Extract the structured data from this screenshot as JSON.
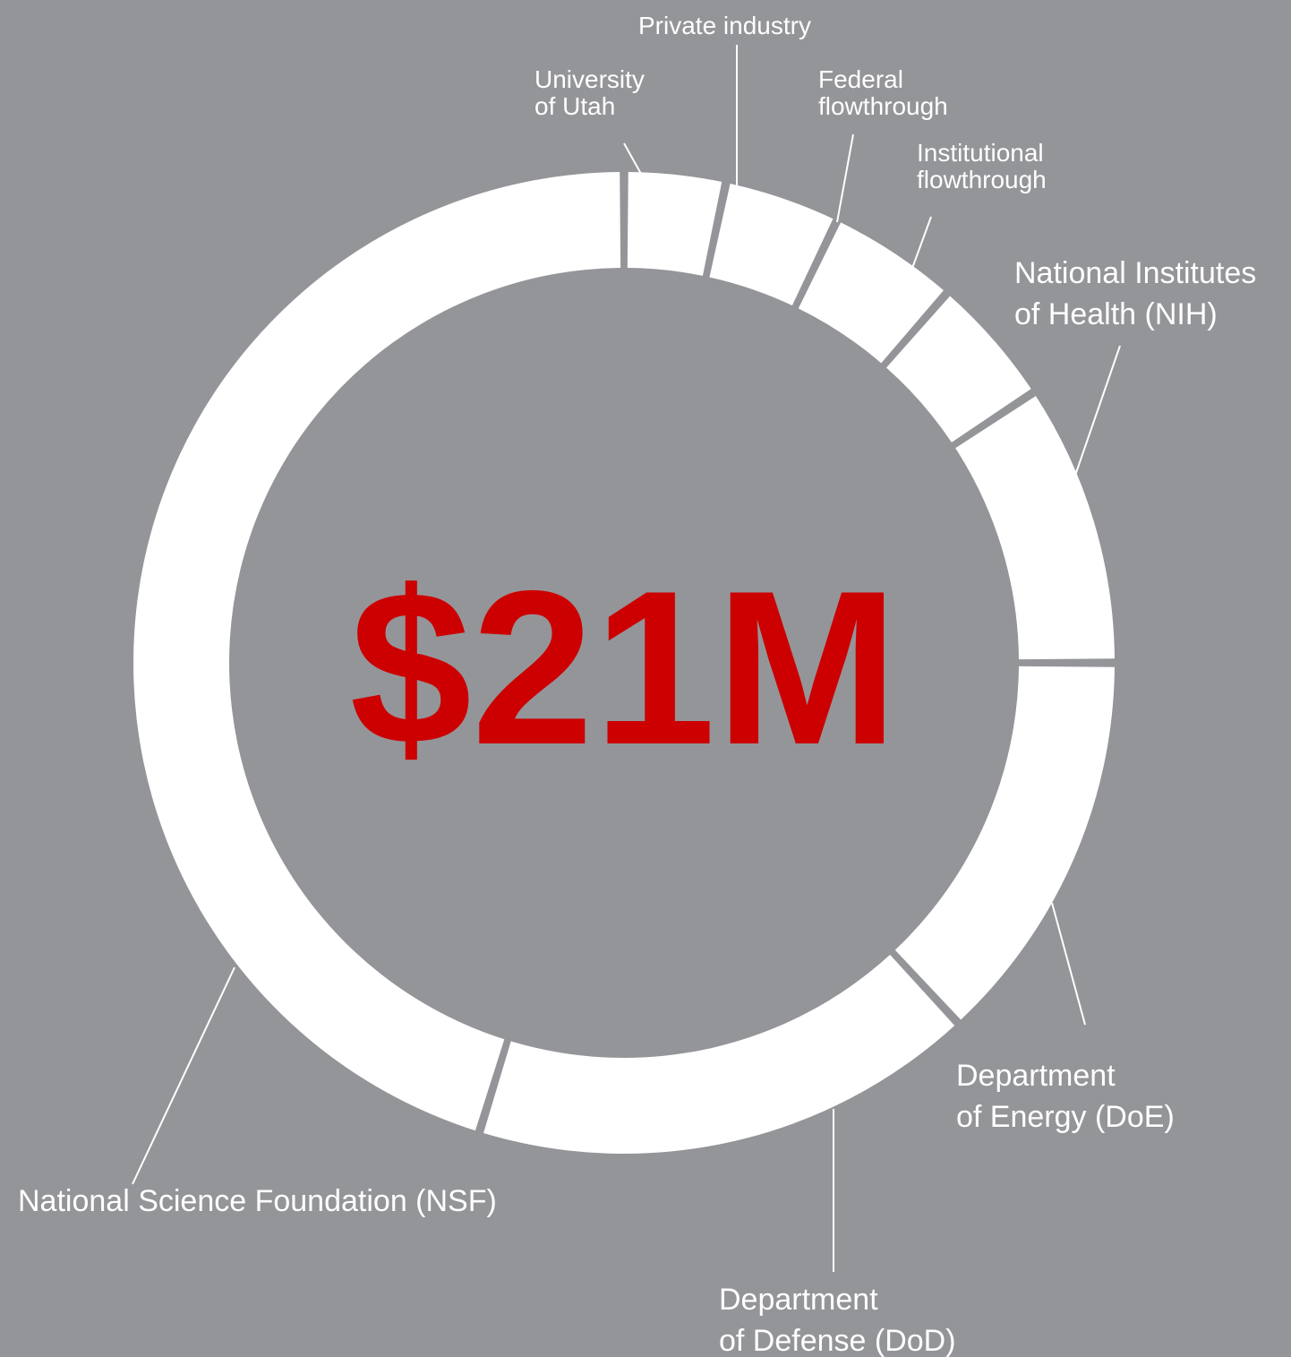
{
  "background_color": "#949599",
  "ring_color": "#ffffff",
  "center_text_color": "#cc0000",
  "chart_data": {
    "type": "pie",
    "donut": true,
    "center_label": "$21M",
    "total": 21,
    "unit": "$M",
    "slices": [
      {
        "name": "University of Utah",
        "lines": [
          "University",
          "of Utah"
        ],
        "value": 0.7
      },
      {
        "name": "Private industry",
        "lines": [
          "Private industry"
        ],
        "value": 0.8
      },
      {
        "name": "Federal flowthrough",
        "lines": [
          "Federal",
          "flowthrough"
        ],
        "value": 0.9
      },
      {
        "name": "Institutional flowthrough",
        "lines": [
          "Institutional",
          "flowthrough"
        ],
        "value": 0.9
      },
      {
        "name": "National Institutes of Health (NIH)",
        "lines": [
          "National Institutes",
          "of Health (NIH)"
        ],
        "value": 1.95
      },
      {
        "name": "Department of Energy (DoE)",
        "lines": [
          "Department",
          "of Energy (DoE)"
        ],
        "value": 2.75
      },
      {
        "name": "Department of Defense (DoD)",
        "lines": [
          "Department",
          "of Defense (DoD)"
        ],
        "value": 3.5
      },
      {
        "name": "National Science Foundation (NSF)",
        "lines": [
          "National Science Foundation (NSF)"
        ],
        "value": 9.5
      }
    ]
  }
}
